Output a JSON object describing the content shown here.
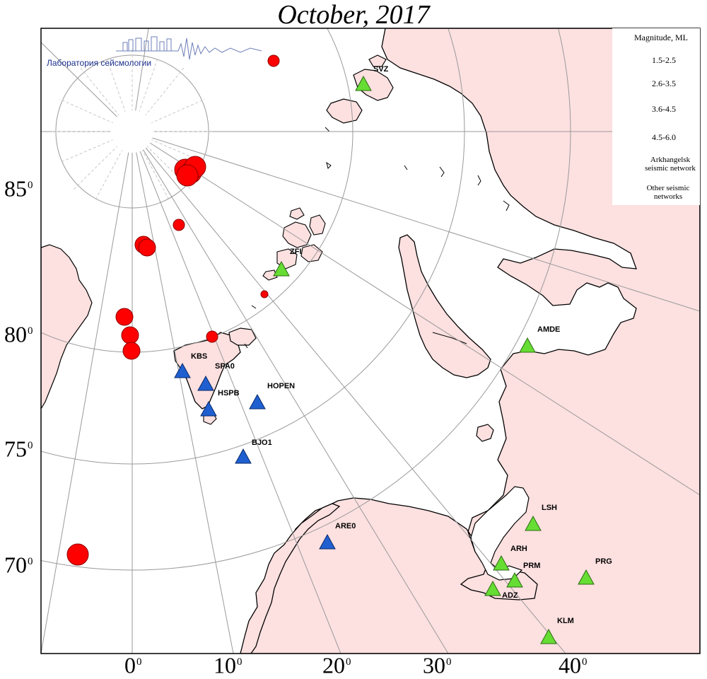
{
  "title": "October, 2017",
  "lab": {
    "name": "Лаборатория сейсмологии",
    "logo_icon": "seismogram-city-logo"
  },
  "lat_labels": [
    "85",
    "80",
    "75",
    "70"
  ],
  "lon_labels": [
    "0",
    "10",
    "20",
    "30",
    "40"
  ],
  "degree_symbol": "0",
  "legend": {
    "title": "Magnitude, ML",
    "magnitudes": [
      "1.5-2.5",
      "2.6-3.5",
      "3.6-4.5",
      "4.5-6.0"
    ],
    "arkhangelsk_network": "Arkhangelsk seismic network",
    "other_networks": "Other seismic networks"
  },
  "colors": {
    "land": "#fde0e0",
    "sea": "#ffffff",
    "event": "#ff0000",
    "arkhangelsk_station": "#66dd33",
    "other_station": "#1f5fd0",
    "graticule": "#9a9a9a"
  },
  "stations": [
    {
      "code": "SVZ",
      "network": "arkhangelsk"
    },
    {
      "code": "ZFI",
      "network": "arkhangelsk"
    },
    {
      "code": "AMDE",
      "network": "arkhangelsk"
    },
    {
      "code": "KBS",
      "network": "other"
    },
    {
      "code": "SPA0",
      "network": "other"
    },
    {
      "code": "HSPB",
      "network": "other"
    },
    {
      "code": "HOPEN",
      "network": "other"
    },
    {
      "code": "BJO1",
      "network": "other"
    },
    {
      "code": "ARE0",
      "network": "other"
    },
    {
      "code": "LSH",
      "network": "arkhangelsk"
    },
    {
      "code": "ARH",
      "network": "arkhangelsk"
    },
    {
      "code": "PRM",
      "network": "arkhangelsk"
    },
    {
      "code": "PRG",
      "network": "arkhangelsk"
    },
    {
      "code": "ADZ",
      "network": "arkhangelsk"
    },
    {
      "code": "KLM",
      "network": "arkhangelsk"
    }
  ],
  "events": [
    {
      "magnitude_class": "2.6-3.5"
    },
    {
      "magnitude_class": "4.5-6.0"
    },
    {
      "magnitude_class": "4.5-6.0"
    },
    {
      "magnitude_class": "4.5-6.0"
    },
    {
      "magnitude_class": "4.5-6.0"
    },
    {
      "magnitude_class": "2.6-3.5"
    },
    {
      "magnitude_class": "3.6-4.5"
    },
    {
      "magnitude_class": "3.6-4.5"
    },
    {
      "magnitude_class": "1.5-2.5"
    },
    {
      "magnitude_class": "3.6-4.5"
    },
    {
      "magnitude_class": "3.6-4.5"
    },
    {
      "magnitude_class": "3.6-4.5"
    },
    {
      "magnitude_class": "2.6-3.5"
    },
    {
      "magnitude_class": "4.5-6.0"
    }
  ]
}
